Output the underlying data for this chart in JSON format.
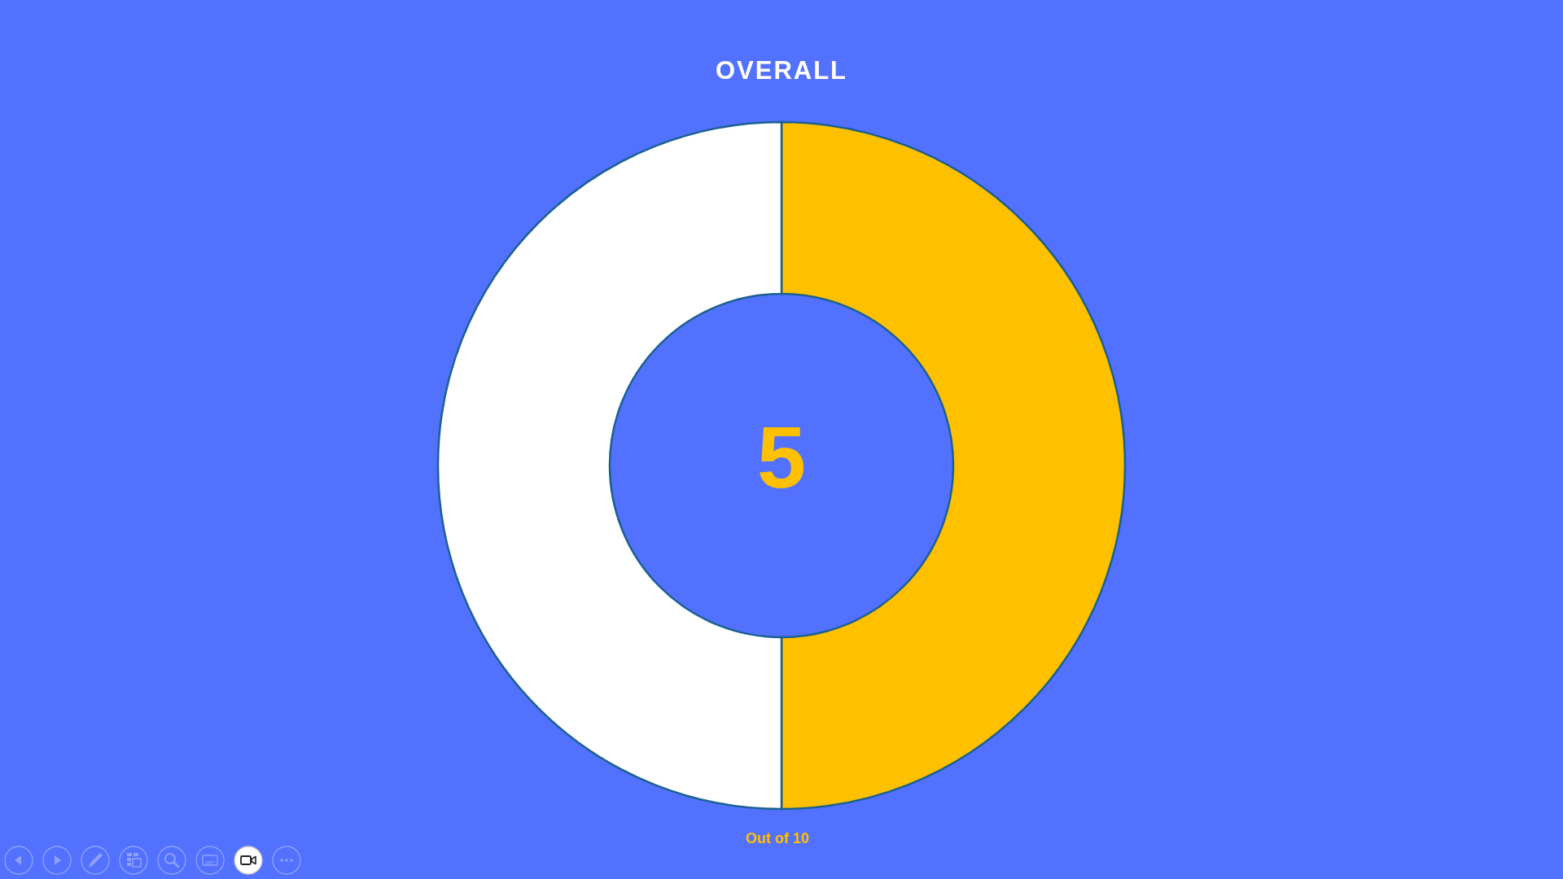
{
  "chart_data": {
    "type": "donut",
    "title": "OVERALL",
    "categories": [
      null,
      null
    ],
    "values": [
      50,
      50
    ],
    "colors": [
      "#ffc000",
      "#ffffff"
    ],
    "annotations": [
      "5",
      "Out of 10"
    ]
  }
}
